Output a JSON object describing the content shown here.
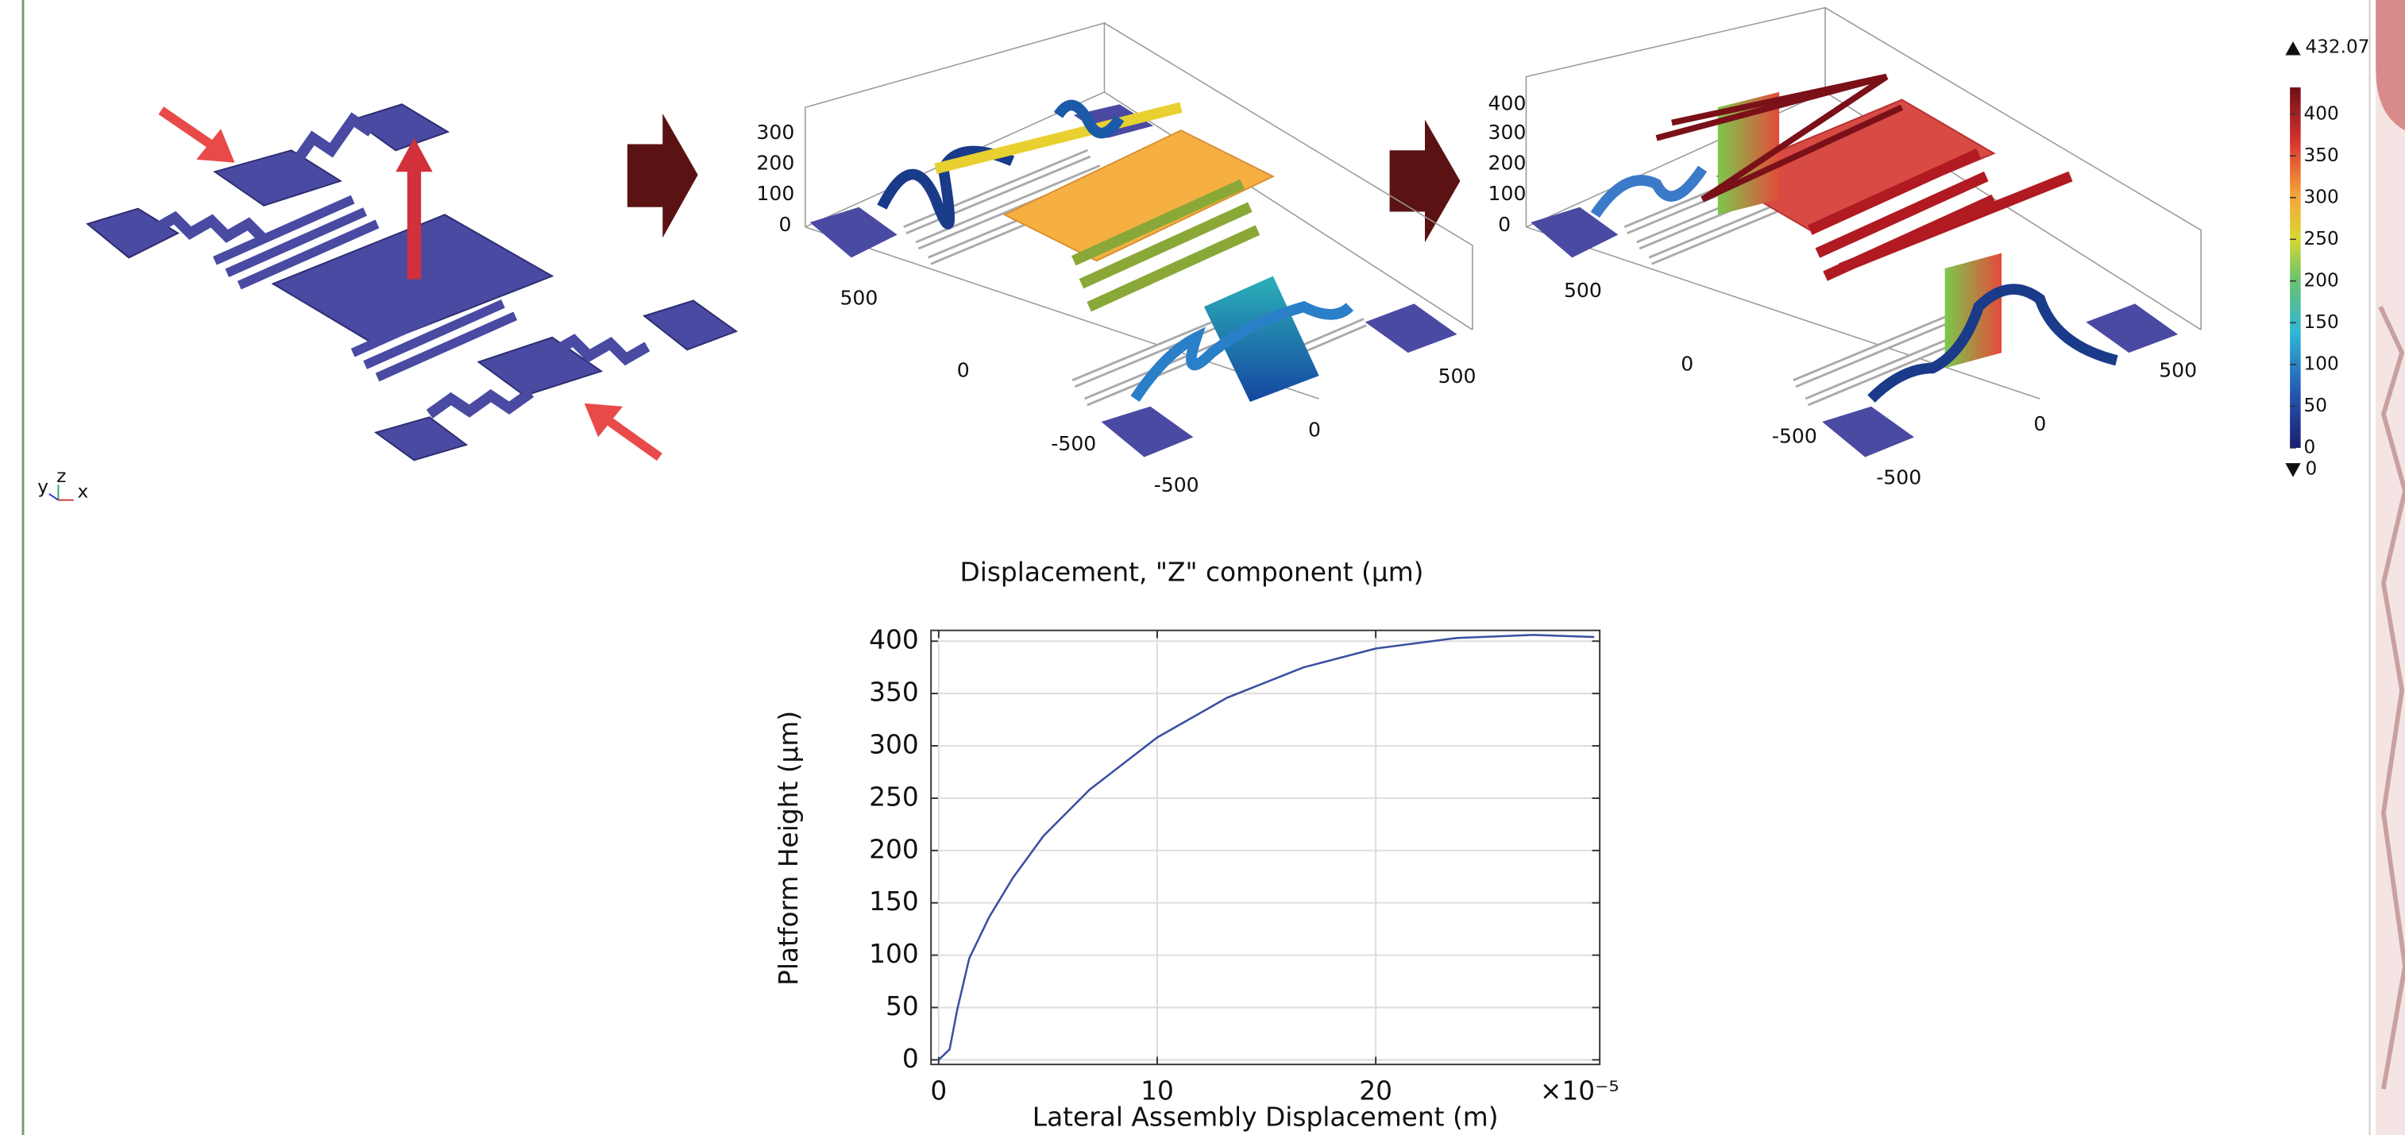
{
  "chart_data": {
    "type": "line",
    "title": "Displacement, \"Z\" component (µm)",
    "x_label": "Lateral Assembly Displacement (m)",
    "y_label": "Platform Height (µm)",
    "x_multiplier": "×10⁻⁵",
    "x": [
      0,
      0.5,
      0.85,
      1.4,
      2.3,
      3.4,
      4.8,
      6.9,
      10,
      13.2,
      16.7,
      20,
      23.7,
      27.2,
      30
    ],
    "values": [
      0,
      10,
      48,
      97,
      136,
      174,
      214,
      258,
      308,
      346,
      375,
      393,
      403,
      406,
      404
    ],
    "color": "#3a4fa0",
    "xlim": [
      -0.35,
      30.25
    ],
    "ylim": [
      -4.4,
      410.3
    ],
    "xticks": [
      0,
      10,
      20
    ],
    "yticks": [
      0,
      50,
      100,
      150,
      200,
      250,
      300,
      350,
      400
    ],
    "grid": true
  },
  "triad_labels": [
    "y",
    "z",
    "x"
  ],
  "plots_3d": [
    {
      "z_ticks": [
        300,
        200,
        100,
        0
      ],
      "y_ticks": [
        500,
        0,
        -500
      ],
      "x_ticks": [
        -500,
        0,
        500
      ]
    },
    {
      "z_ticks": [
        400,
        300,
        200,
        100,
        0
      ],
      "y_ticks": [
        500,
        0,
        -500
      ],
      "x_ticks": [
        -500,
        0,
        500
      ]
    }
  ],
  "colorbar": {
    "max": 432.07,
    "min": 0,
    "ticks": [
      0,
      50,
      100,
      150,
      200,
      250,
      300,
      350,
      400
    ]
  }
}
